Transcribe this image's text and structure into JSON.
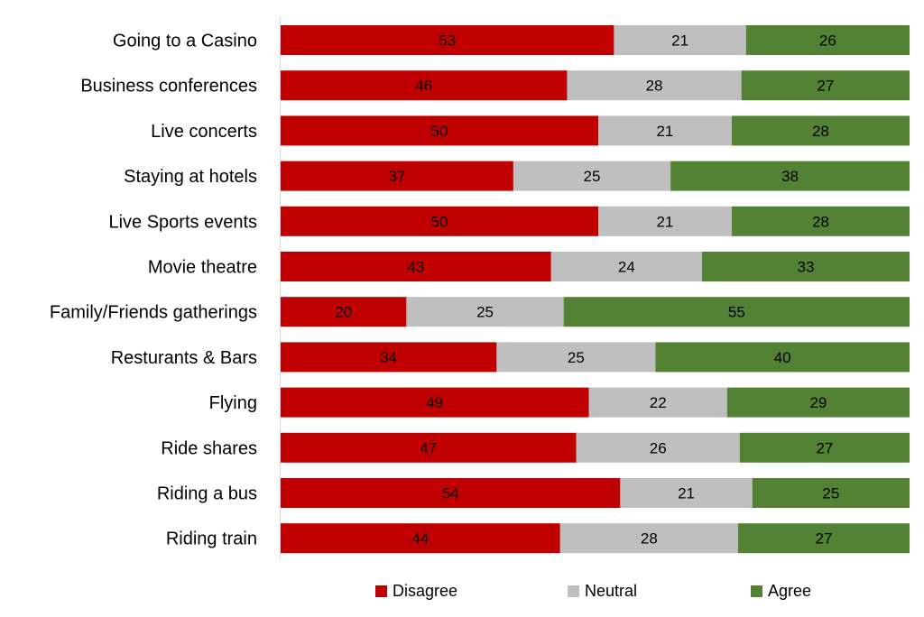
{
  "chart_data": {
    "type": "bar",
    "orientation": "horizontal",
    "stacked": true,
    "categories": [
      "Going to a Casino",
      "Business conferences",
      "Live concerts",
      "Staying at hotels",
      "Live Sports events",
      "Movie theatre",
      "Family/Friends gatherings",
      "Resturants & Bars",
      "Flying",
      "Ride shares",
      "Riding a bus",
      "Riding train"
    ],
    "series": [
      {
        "name": "Disagree",
        "color": "#C00000",
        "values": [
          53,
          46,
          50,
          37,
          50,
          43,
          20,
          34,
          49,
          47,
          54,
          44
        ]
      },
      {
        "name": "Neutral",
        "color": "#BFBFBF",
        "values": [
          21,
          28,
          21,
          25,
          21,
          24,
          25,
          25,
          22,
          26,
          21,
          28
        ]
      },
      {
        "name": "Agree",
        "color": "#548235",
        "values": [
          26,
          27,
          28,
          38,
          28,
          33,
          55,
          40,
          29,
          27,
          25,
          27
        ]
      }
    ],
    "title": "",
    "xlabel": "",
    "ylabel": "",
    "legend_position": "bottom",
    "grid": false
  }
}
